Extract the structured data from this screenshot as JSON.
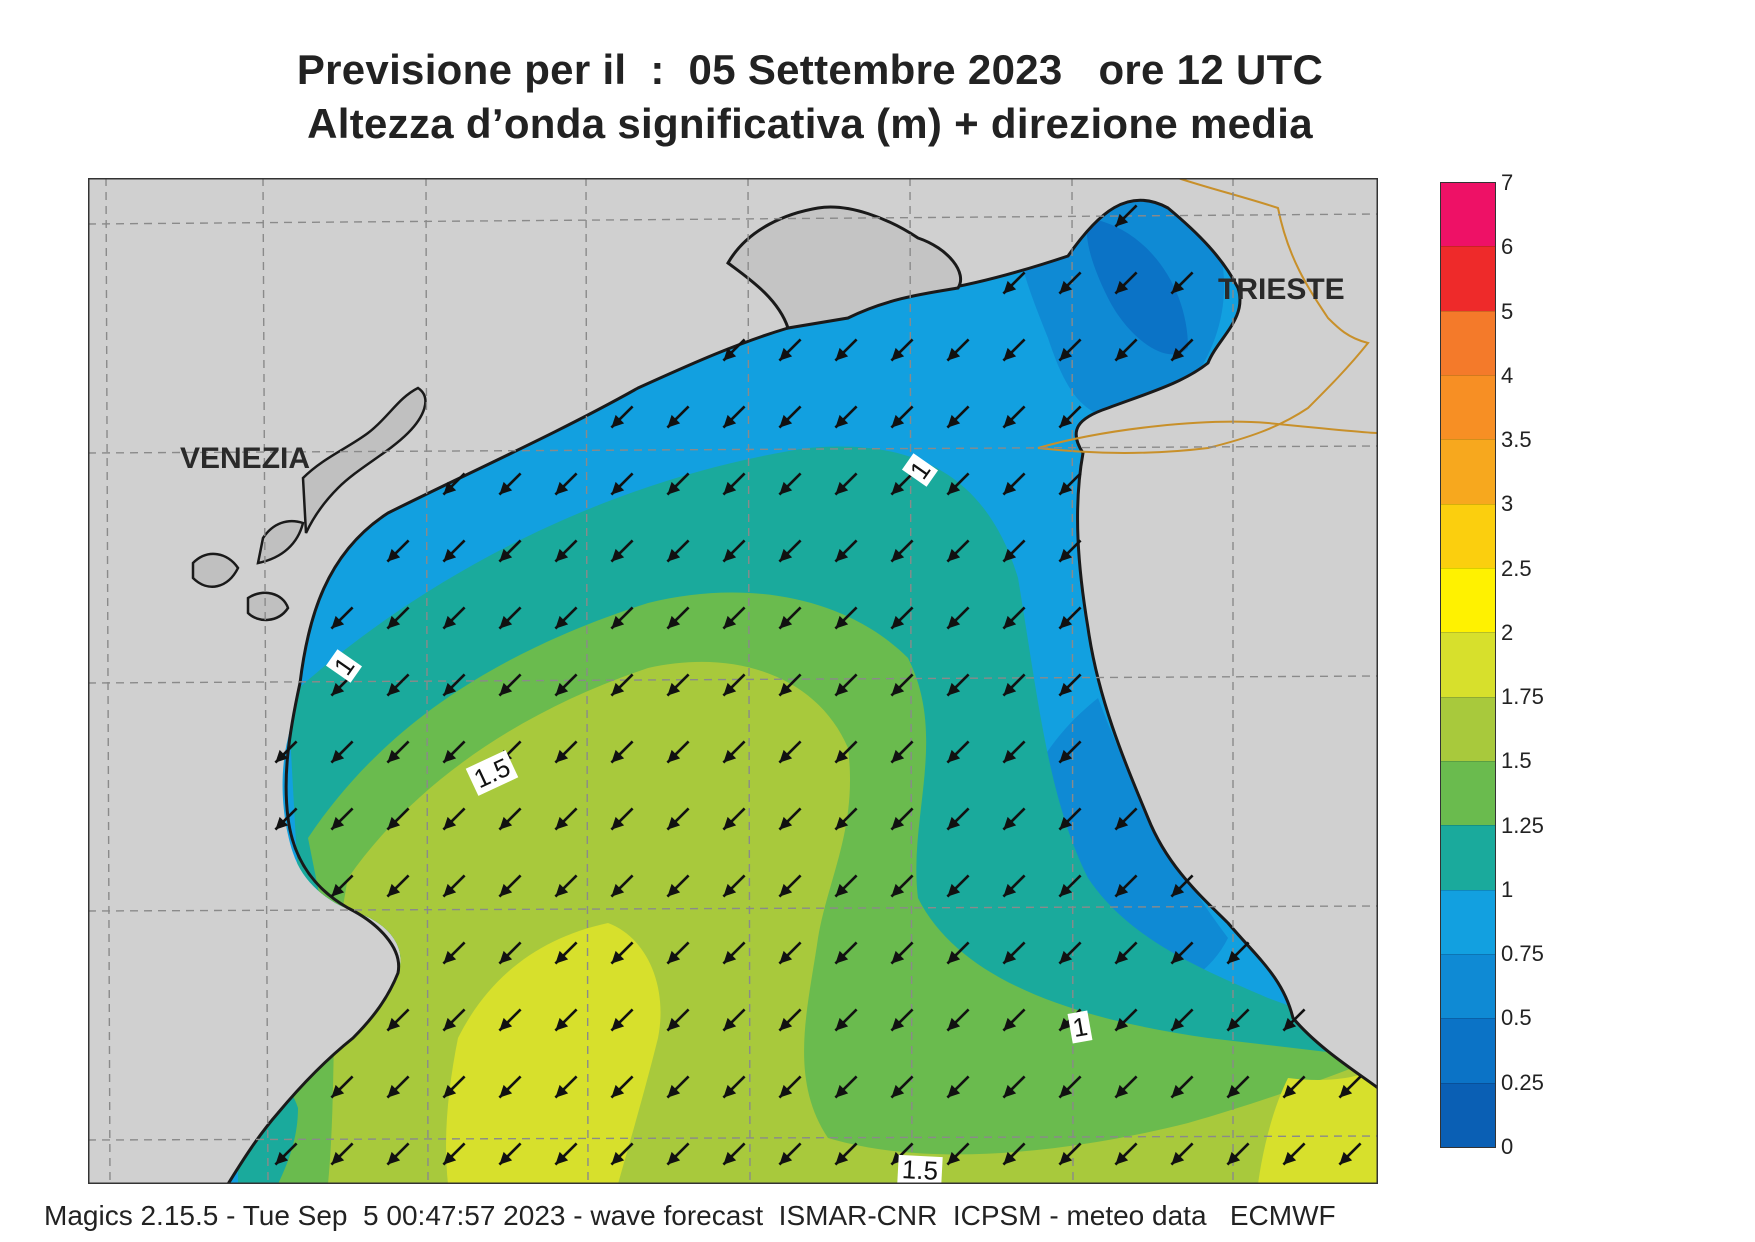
{
  "title": {
    "line1": "Previsione per il  :  05 Settembre 2023   ore 12 UTC",
    "line2": "Altezza d’onda significativa (m) + direzione media"
  },
  "map": {
    "places": [
      {
        "key": "venezia",
        "name": "VENEZIA"
      },
      {
        "key": "trieste",
        "name": "TRIESTE"
      }
    ],
    "contour_labels": [
      "1",
      "1",
      "1.5",
      "1",
      "1.5"
    ],
    "arrow_direction": "south-west",
    "colors": {
      "land": "#d0d0d0",
      "border": "#c8902a",
      "grid": "#8a8a8a"
    }
  },
  "legend": {
    "unit": "m",
    "ticks": [
      "7",
      "6",
      "5",
      "4",
      "3.5",
      "3",
      "2.5",
      "2",
      "1.75",
      "1.5",
      "1.25",
      "1",
      "0.75",
      "0.5",
      "0.25",
      "0"
    ],
    "colors_top_to_bottom": [
      "#ee1166",
      "#ee2a2a",
      "#f47a2a",
      "#f78f24",
      "#f7a81e",
      "#fbcf0e",
      "#fff200",
      "#d7e02c",
      "#a8c93c",
      "#6abb4e",
      "#1aaa9c",
      "#12a0e0",
      "#0f8ad4",
      "#0b73c6",
      "#0a5fb4"
    ]
  },
  "footer": "Magics 2.15.5 - Tue Sep  5 00:47:57 2023 - wave forecast  ISMAR-CNR  ICPSM - meteo data   ECMWF"
}
